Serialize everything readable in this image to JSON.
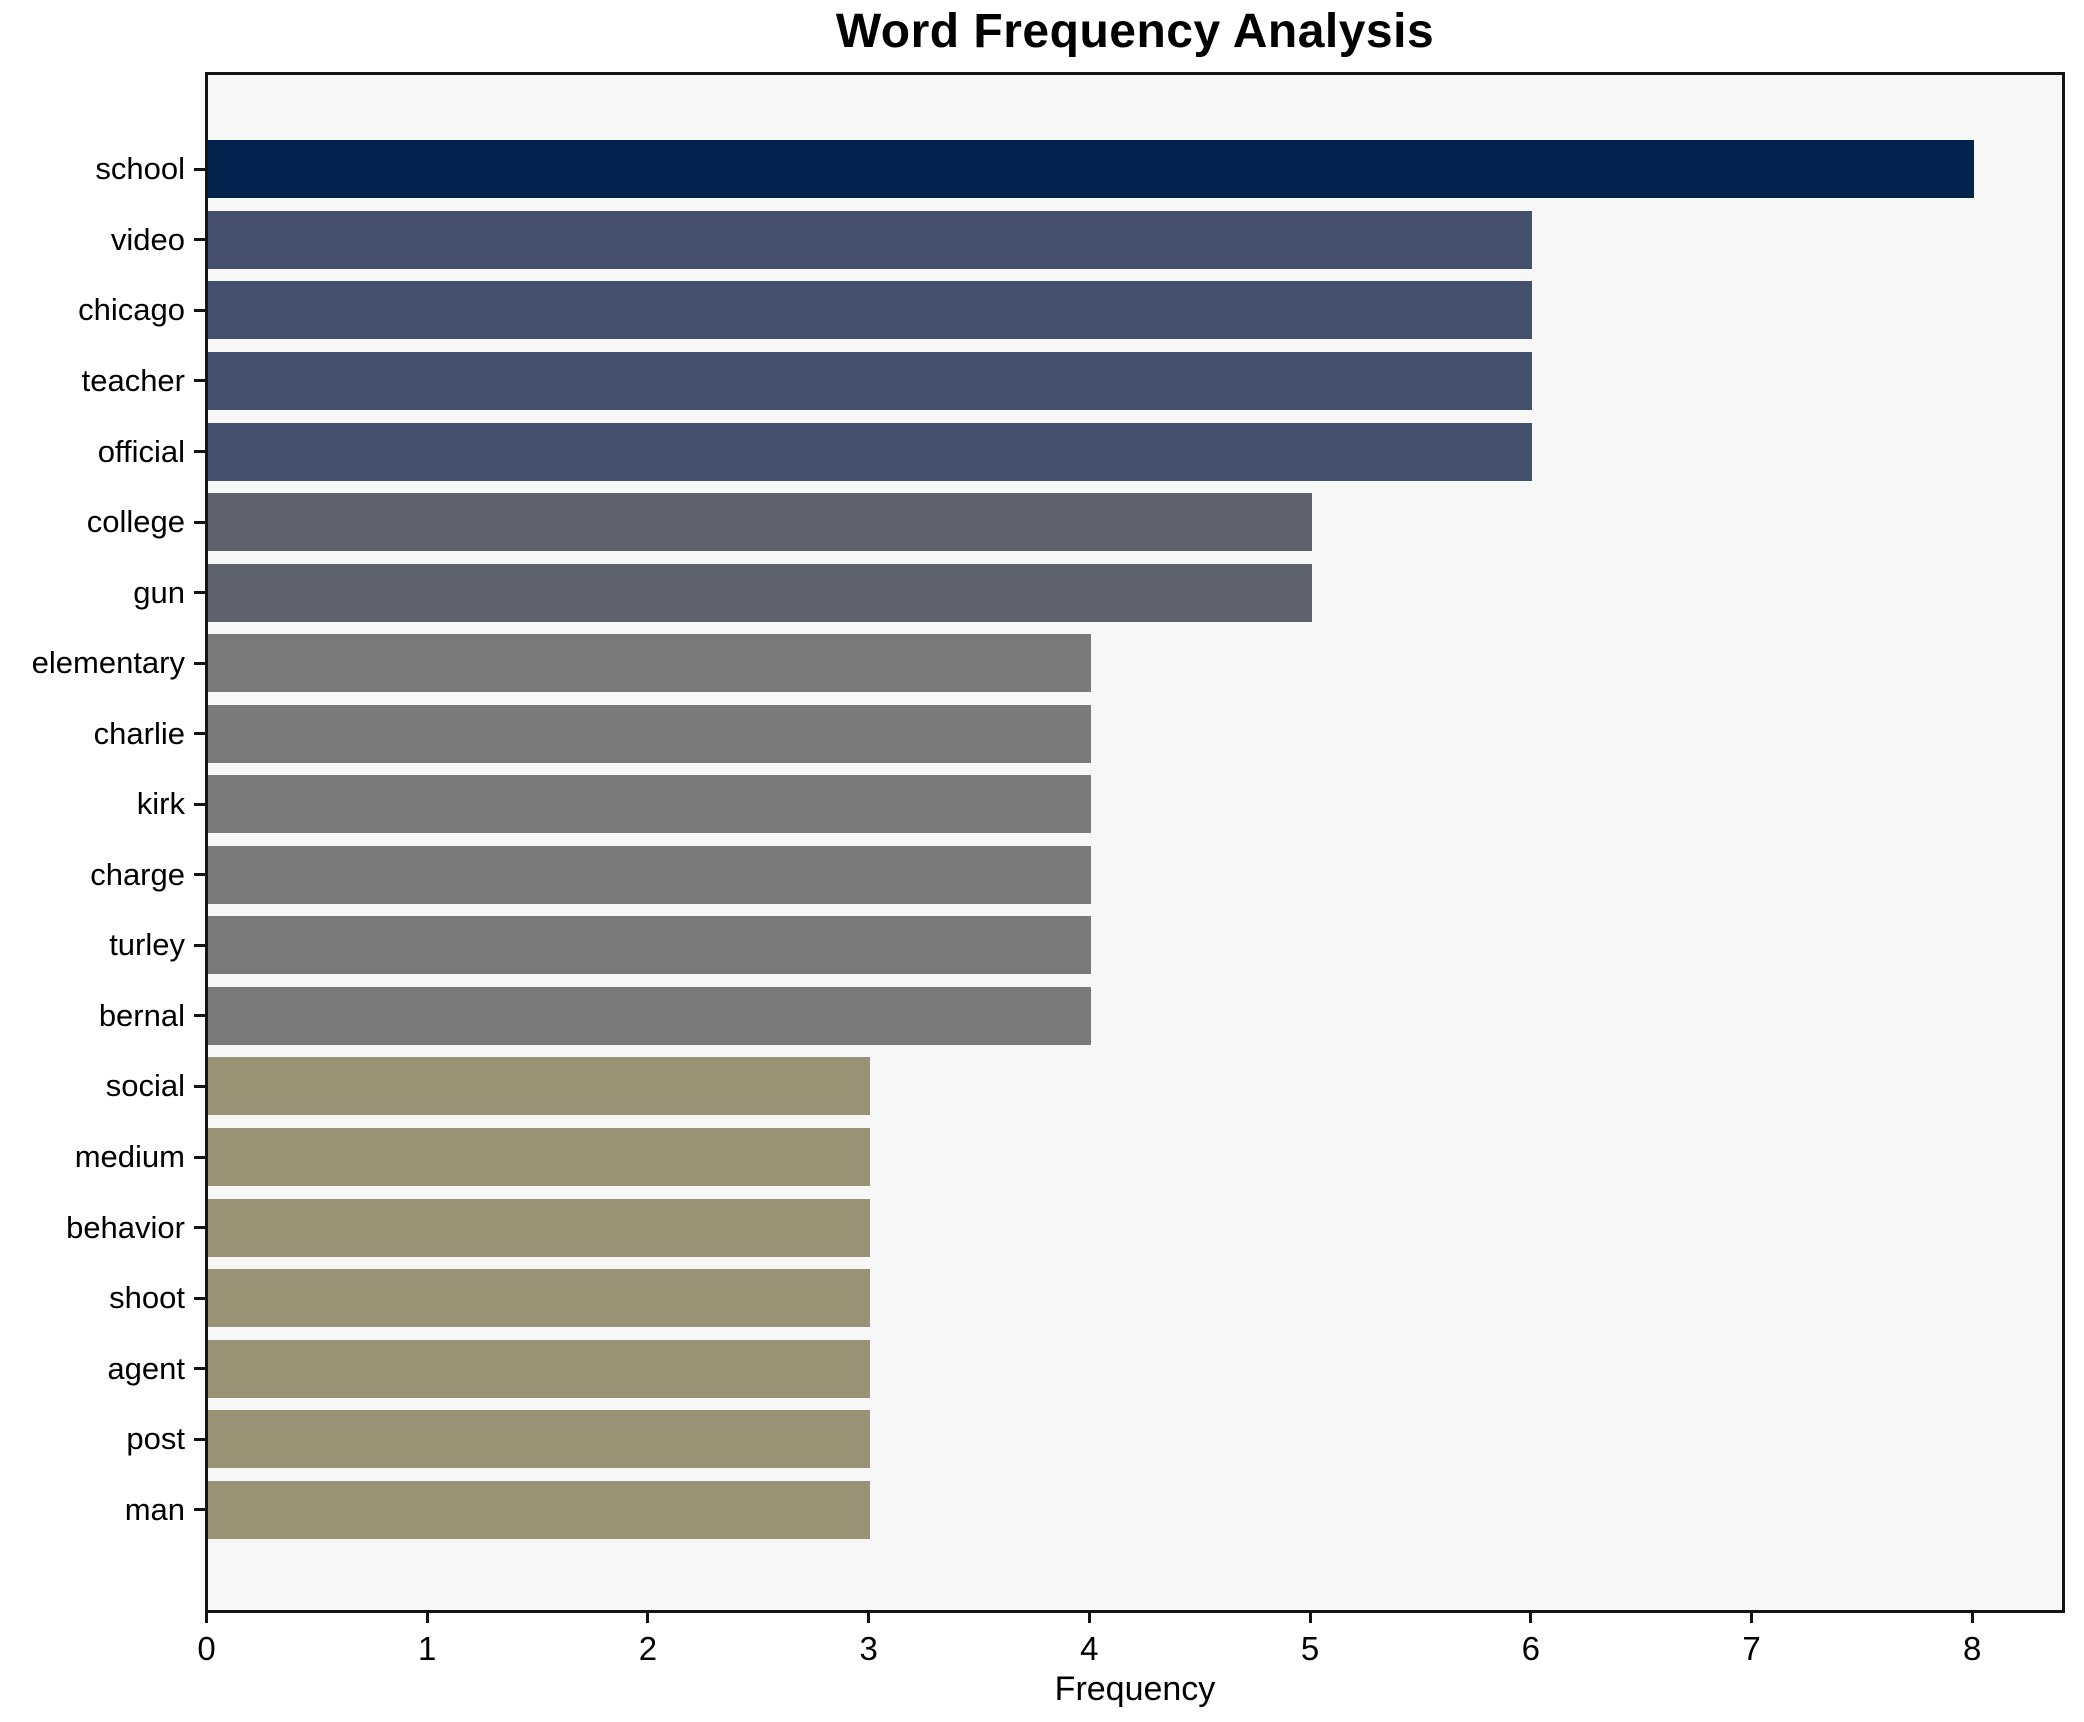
{
  "chart_data": {
    "type": "bar",
    "orientation": "horizontal",
    "title": "Word Frequency Analysis",
    "xlabel": "Frequency",
    "ylabel": "",
    "categories": [
      "school",
      "video",
      "chicago",
      "teacher",
      "official",
      "college",
      "gun",
      "elementary",
      "charlie",
      "kirk",
      "charge",
      "turley",
      "bernal",
      "social",
      "medium",
      "behavior",
      "shoot",
      "agent",
      "post",
      "man"
    ],
    "values": [
      8,
      6,
      6,
      6,
      6,
      5,
      5,
      4,
      4,
      4,
      4,
      4,
      4,
      3,
      3,
      3,
      3,
      3,
      3,
      3
    ],
    "bar_colors": [
      "#02234d",
      "#454f6e",
      "#454f6e",
      "#454f6e",
      "#454f6e",
      "#5e626d",
      "#5e626d",
      "#7a7a78",
      "#7a7a78",
      "#7a7a78",
      "#7a7a78",
      "#7a7a78",
      "#7a7a78",
      "#9a9274",
      "#9a9274",
      "#9a9274",
      "#9a9274",
      "#9a9274",
      "#9a9274",
      "#9a9274"
    ],
    "xlim": [
      0,
      8.4
    ],
    "xticks": [
      0,
      1,
      2,
      3,
      4,
      5,
      6,
      7,
      8
    ],
    "xtick_labels": [
      "0",
      "1",
      "2",
      "3",
      "4",
      "5",
      "6",
      "7",
      "8"
    ],
    "grid": false,
    "legend": "none",
    "colors": {
      "figure_background": "#ffffff",
      "plot_background": "#f7f7f8",
      "spine": "#141414",
      "text": "#000000"
    }
  }
}
